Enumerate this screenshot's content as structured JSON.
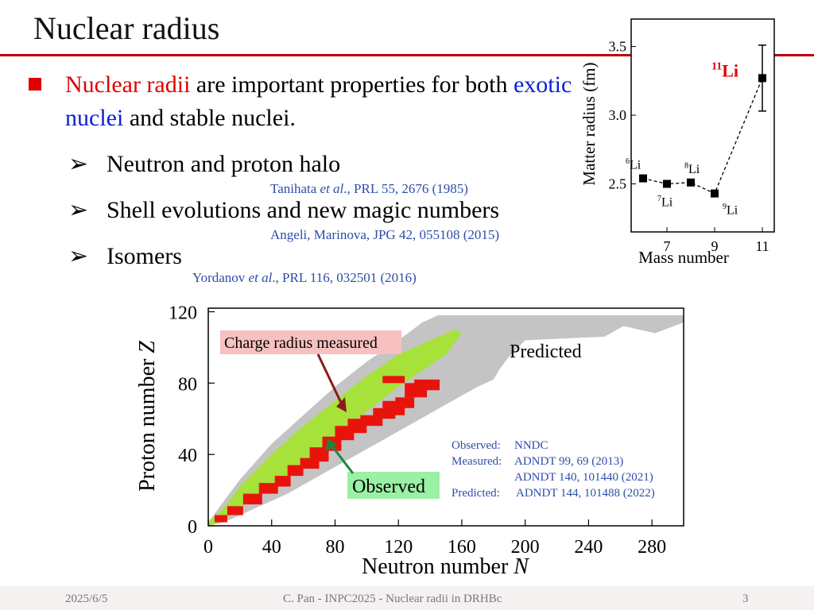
{
  "slide": {
    "title": "Nuclear radius",
    "bullet": {
      "part1_red": "Nuclear radii",
      "part2": " are important properties for both ",
      "part3_blue": "exotic nuclei",
      "part4": " and stable nuclei."
    },
    "subitems": [
      {
        "label": "Neutron and proton halo",
        "ref_pre": "Tanihata ",
        "ref_ital": "et al",
        "ref_post": "., PRL 55, 2676 (1985)"
      },
      {
        "label": "Shell evolutions and new magic numbers",
        "ref_pre": "Angeli, Marinova, JPG 42, 055108 (2015)",
        "ref_ital": "",
        "ref_post": ""
      },
      {
        "label": "Isomers",
        "ref_pre": "Yordanov ",
        "ref_ital": "et al",
        "ref_post": "., PRL 116, 032501 (2016)"
      }
    ],
    "arrow_glyph": "➢",
    "footer": {
      "date": "2025/6/5",
      "center": "C. Pan - INPC2025 - Nuclear radii in DRHBc",
      "page": "3"
    },
    "colors": {
      "accent": "#c00000",
      "red_text": "#e00000",
      "blue_text": "#0b1ed8",
      "ref_text": "#2e4da8"
    }
  },
  "chart_data": [
    {
      "type": "scatter",
      "xlabel": "Mass number",
      "ylabel": "Matter radius (fm)",
      "xticks": [
        "7",
        "9",
        "11"
      ],
      "yticks": [
        "2.5",
        "3.0",
        "3.5"
      ],
      "xlim": [
        5.5,
        11.5
      ],
      "ylim": [
        2.15,
        3.7
      ],
      "points": [
        {
          "x": 6,
          "y": 2.54,
          "label_sup": "6",
          "label": "Li"
        },
        {
          "x": 7,
          "y": 2.5,
          "label_sup": "7",
          "label": "Li"
        },
        {
          "x": 8,
          "y": 2.51,
          "label_sup": "8",
          "label": "Li"
        },
        {
          "x": 9,
          "y": 2.43,
          "label_sup": "9",
          "label": "Li"
        },
        {
          "x": 11,
          "y": 3.27,
          "err": 0.24,
          "label_sup": "11",
          "label": "Li"
        }
      ],
      "line_style": "dashed"
    },
    {
      "type": "heatmap",
      "xlabel_text": "Neutron number ",
      "xlabel_var": "N",
      "ylabel_text": "Proton number ",
      "ylabel_var": "Z",
      "xticks": [
        "0",
        "40",
        "80",
        "120",
        "160",
        "200",
        "240",
        "280"
      ],
      "yticks": [
        "0",
        "40",
        "80",
        "120"
      ],
      "xlim": [
        0,
        300
      ],
      "ylim": [
        0,
        122
      ],
      "regions": [
        {
          "name": "Predicted",
          "color": "#c4c4c4"
        },
        {
          "name": "Observed",
          "color": "#a6e23a"
        },
        {
          "name": "Charge radius measured",
          "color": "#e8140c"
        }
      ],
      "labels": {
        "measured": "Charge radius measured",
        "predicted": "Predicted",
        "observed": "Observed"
      },
      "sources": [
        {
          "k": "Observed:",
          "v": "NNDC"
        },
        {
          "k": "Measured:",
          "v": "ADNDT 99, 69 (2013)"
        },
        {
          "k": "",
          "v": "ADNDT 140, 101440 (2021)"
        },
        {
          "k": "Predicted:",
          "v": "ADNDT 144, 101488 (2022)"
        }
      ]
    }
  ]
}
